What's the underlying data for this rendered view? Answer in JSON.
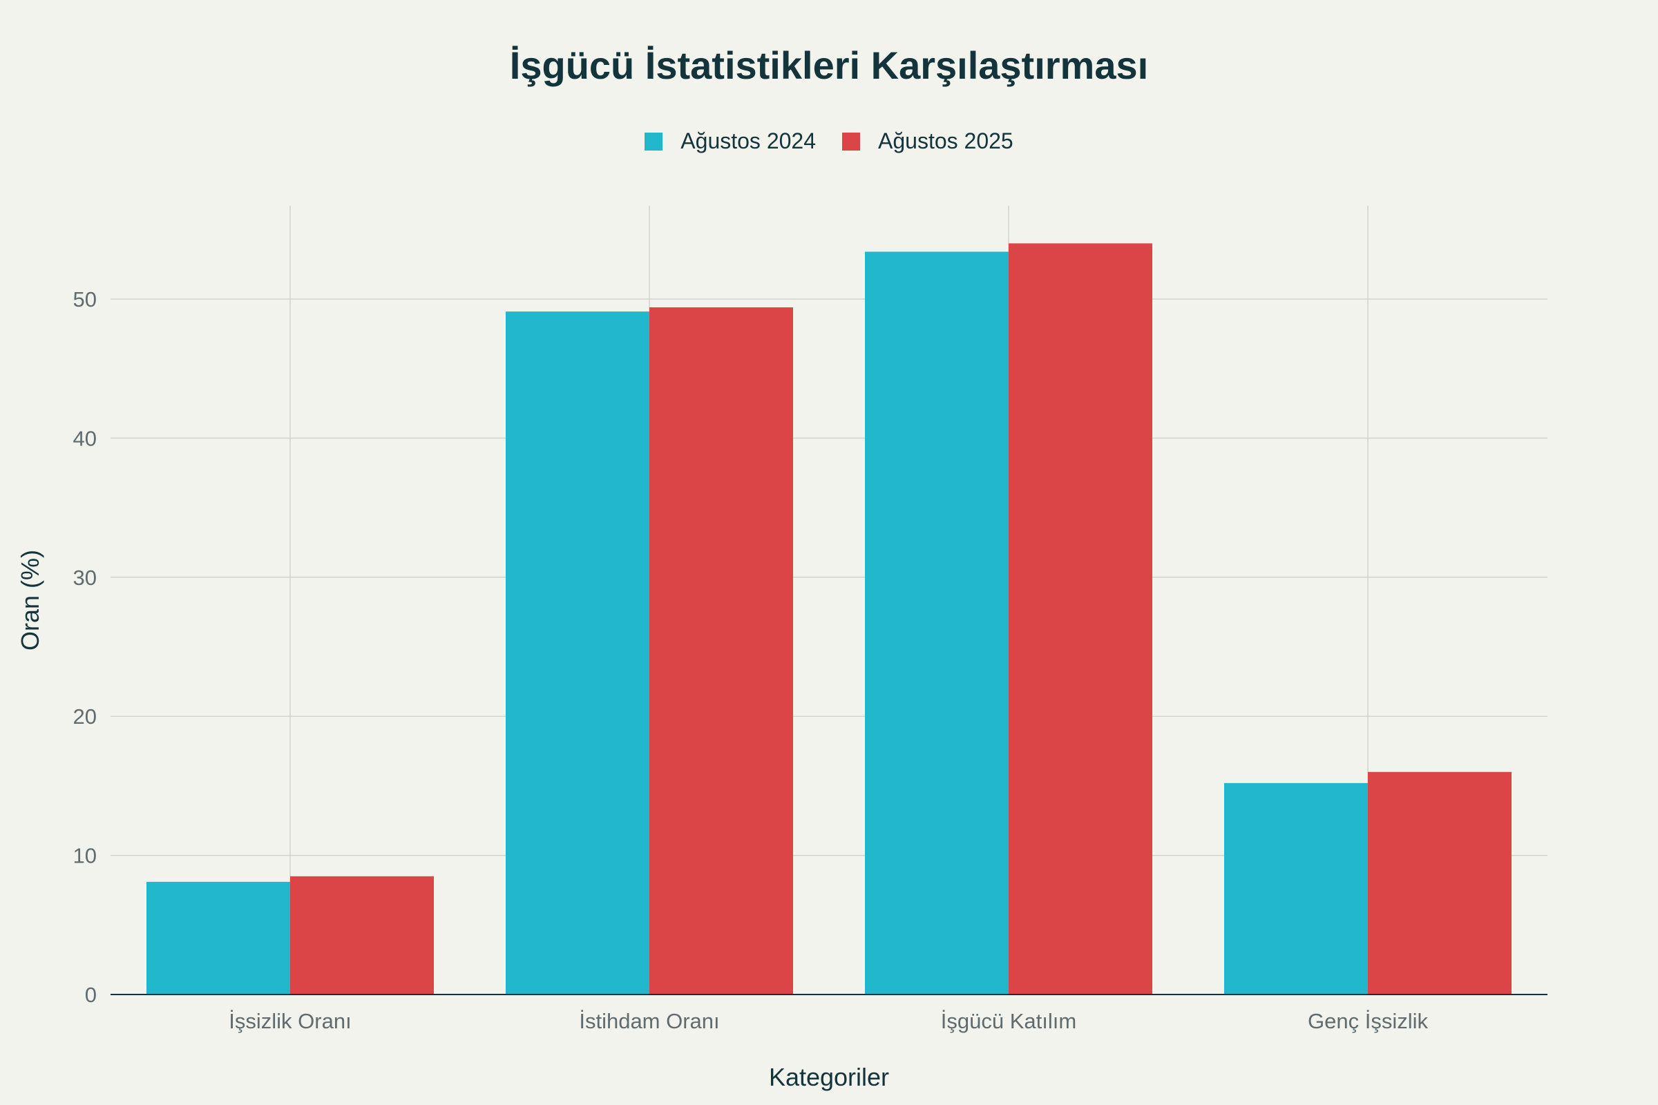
{
  "chart_data": {
    "type": "bar",
    "title": "İşgücü İstatistikleri Karşılaştırması",
    "xlabel": "Kategoriler",
    "ylabel": "Oran (%)",
    "categories": [
      "İşsizlik Oranı",
      "İstihdam Oranı",
      "İşgücü Katılım",
      "Genç İşsizlik"
    ],
    "series": [
      {
        "name": "Ağustos 2024",
        "color": "#21b8cd",
        "values": [
          8.1,
          49.1,
          53.4,
          15.2
        ]
      },
      {
        "name": "Ağustos 2025",
        "color": "#db4548",
        "values": [
          8.5,
          49.4,
          54.0,
          16.0
        ]
      }
    ],
    "ylim": [
      0,
      56.7
    ],
    "yticks": [
      0,
      10,
      20,
      30,
      40,
      50
    ],
    "legend_position": "top-center",
    "grid": true
  }
}
